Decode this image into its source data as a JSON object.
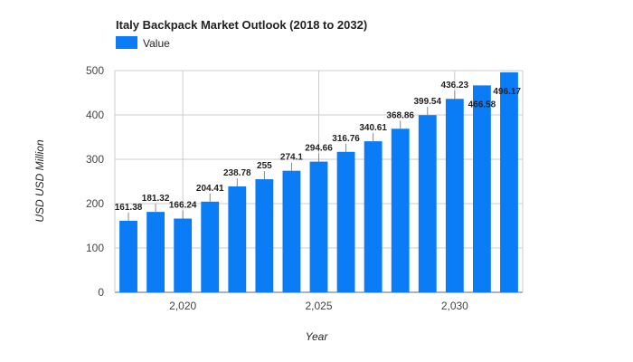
{
  "chart_data": {
    "type": "bar",
    "title": "Italy Backpack Market Outlook (2018 to 2032)",
    "xlabel": "Year",
    "ylabel": "USD USD Million",
    "x": [
      2018,
      2019,
      2020,
      2021,
      2022,
      2023,
      2024,
      2025,
      2026,
      2027,
      2028,
      2029,
      2030,
      2031,
      2032
    ],
    "series": [
      {
        "name": "Value",
        "values": [
          161.38,
          181.32,
          166.24,
          204.41,
          238.78,
          255,
          274.1,
          294.66,
          316.76,
          340.61,
          368.86,
          399.54,
          436.23,
          466.58,
          496.17
        ],
        "labels": [
          "161.38",
          "181.32",
          "166.24",
          "204.41",
          "238.78",
          "255",
          "274.1",
          "294.66",
          "316.76",
          "340.61",
          "368.86",
          "399.54",
          "436.23",
          "466.58",
          "496.17"
        ]
      }
    ],
    "ylim": [
      0,
      500
    ],
    "yticks": [
      0,
      100,
      200,
      300,
      400,
      500
    ],
    "xticks": [
      2020,
      2025,
      2030
    ],
    "xtick_labels": [
      "2,020",
      "2,025",
      "2,030"
    ],
    "bar_color": "#0a7cf5",
    "grid": true,
    "legend_position": "top-left"
  }
}
